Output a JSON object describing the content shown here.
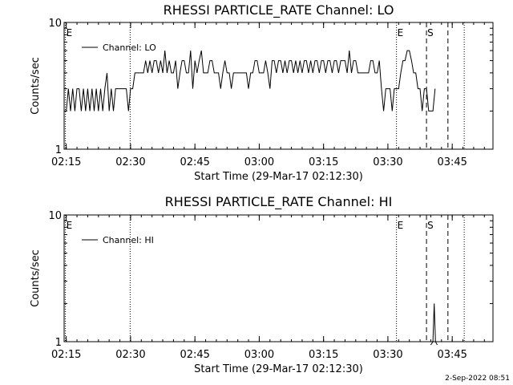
{
  "footer": {
    "timestamp": "2-Sep-2022 08:51"
  },
  "chart_data": [
    {
      "type": "line",
      "title": "RHESSI PARTICLE_RATE Channel: LO",
      "xlabel": "Start Time (29-Mar-17 02:12:30)",
      "ylabel": "Counts/sec",
      "yscale": "log",
      "ylim": [
        1,
        10
      ],
      "yticks": [
        1,
        10
      ],
      "ytick_labels": [
        "1",
        "10"
      ],
      "xlim_minutes": [
        2,
        102
      ],
      "xticks_minutes": [
        2.5,
        17.5,
        32.5,
        47.5,
        62.5,
        77.5,
        92.5
      ],
      "xtick_labels": [
        "02:15",
        "02:30",
        "02:45",
        "03:00",
        "03:15",
        "03:30",
        "03:45"
      ],
      "grid": false,
      "legend": {
        "position": "top-left",
        "entries": [
          "Channel: LO"
        ]
      },
      "markers": [
        {
          "label": "E",
          "minute": 2.3,
          "style": "dotted"
        },
        {
          "label": "",
          "minute": 17.4,
          "style": "dotted"
        },
        {
          "label": "E",
          "minute": 79.5,
          "style": "dotted"
        },
        {
          "label": "S",
          "minute": 86.5,
          "style": "dashed"
        },
        {
          "label": "",
          "minute": 91.5,
          "style": "dashed"
        },
        {
          "label": "",
          "minute": 95.3,
          "style": "dotted"
        }
      ],
      "series": [
        {
          "name": "Channel: LO",
          "step_minutes": 0.5,
          "x_start_minute": 2.5,
          "values": [
            2,
            3,
            2,
            3,
            2,
            3,
            3,
            2,
            3,
            2,
            3,
            2,
            3,
            2,
            3,
            2,
            3,
            2,
            3,
            4,
            2,
            3,
            2,
            3,
            3,
            3,
            3,
            3,
            3,
            2,
            3,
            3,
            4,
            4,
            4,
            4,
            4,
            5,
            4,
            5,
            4,
            5,
            5,
            4,
            5,
            4,
            6,
            4,
            5,
            4,
            4,
            5,
            3,
            4,
            5,
            5,
            4,
            4,
            6,
            3,
            5,
            4,
            5,
            6,
            4,
            4,
            4,
            5,
            5,
            4,
            4,
            4,
            3,
            4,
            5,
            4,
            4,
            3,
            4,
            4,
            4,
            4,
            4,
            4,
            4,
            3,
            4,
            4,
            5,
            5,
            4,
            4,
            4,
            5,
            4,
            3,
            5,
            5,
            4,
            5,
            5,
            4,
            5,
            4,
            5,
            5,
            4,
            5,
            4,
            5,
            4,
            5,
            5,
            4,
            5,
            4,
            5,
            5,
            4,
            5,
            5,
            4,
            5,
            5,
            4,
            5,
            5,
            4,
            5,
            5,
            5,
            4,
            6,
            4,
            5,
            5,
            4,
            4,
            4,
            4,
            4,
            4,
            5,
            5,
            4,
            4,
            5,
            3,
            2,
            3,
            3,
            3,
            2,
            3,
            3,
            3,
            4,
            5,
            5,
            6,
            6,
            5,
            4,
            4,
            3,
            3,
            2,
            3,
            3,
            2,
            2,
            2,
            3
          ]
        }
      ]
    },
    {
      "type": "line",
      "title": "RHESSI PARTICLE_RATE Channel: HI",
      "xlabel": "Start Time (29-Mar-17 02:12:30)",
      "ylabel": "Counts/sec",
      "yscale": "log",
      "ylim": [
        1,
        10
      ],
      "yticks": [
        1,
        10
      ],
      "ytick_labels": [
        "1",
        "10"
      ],
      "xlim_minutes": [
        2,
        102
      ],
      "xticks_minutes": [
        2.5,
        17.5,
        32.5,
        47.5,
        62.5,
        77.5,
        92.5
      ],
      "xtick_labels": [
        "02:15",
        "02:30",
        "02:45",
        "03:00",
        "03:15",
        "03:30",
        "03:45"
      ],
      "grid": false,
      "legend": {
        "position": "top-left",
        "entries": [
          "Channel: HI"
        ]
      },
      "markers": [
        {
          "label": "E",
          "minute": 2.3,
          "style": "dotted"
        },
        {
          "label": "",
          "minute": 17.4,
          "style": "dotted"
        },
        {
          "label": "E",
          "minute": 79.5,
          "style": "dotted"
        },
        {
          "label": "S",
          "minute": 86.5,
          "style": "dashed"
        },
        {
          "label": "",
          "minute": 91.5,
          "style": "dashed"
        },
        {
          "label": "",
          "minute": 95.3,
          "style": "dotted"
        }
      ],
      "series": [
        {
          "name": "Channel: HI",
          "x": [
            87.5,
            88.0,
            88.3,
            88.6,
            89.0
          ],
          "values": [
            0,
            1,
            2,
            1,
            0
          ]
        }
      ]
    }
  ]
}
